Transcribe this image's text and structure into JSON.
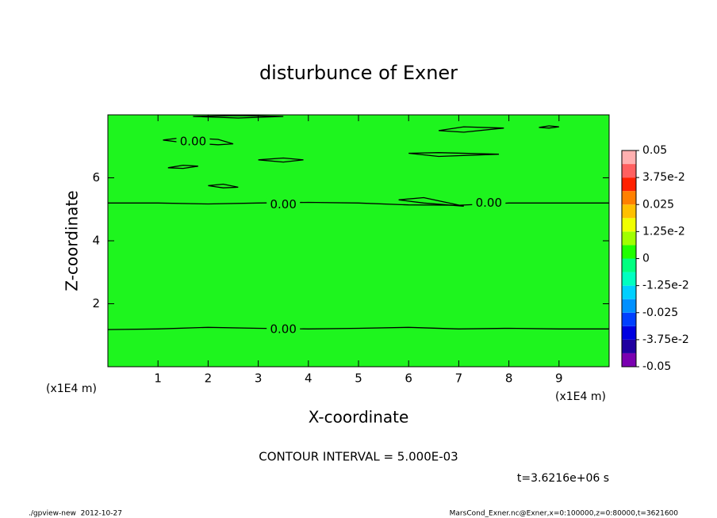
{
  "chart_data": {
    "type": "contour",
    "title": "disturbunce of Exner",
    "xlabel": "X-coordinate",
    "ylabel": "Z-coordinate",
    "x_unit": "(x1E4 m)",
    "xlim": [
      0,
      10
    ],
    "ylim": [
      0,
      8
    ],
    "xticks": [
      1,
      2,
      3,
      4,
      5,
      6,
      7,
      8,
      9
    ],
    "yticks": [
      2,
      4,
      6
    ],
    "fill_color": "#1ef51e",
    "line_color": "#000000",
    "contours": [
      {
        "x": [
          0,
          1,
          2,
          3,
          4,
          5,
          6,
          7,
          8,
          9,
          10
        ],
        "y": [
          1.18,
          1.2,
          1.25,
          1.22,
          1.2,
          1.22,
          1.25,
          1.2,
          1.22,
          1.2,
          1.2
        ]
      },
      {
        "x": [
          0,
          1,
          2,
          3,
          4,
          5,
          6,
          7,
          8,
          9,
          10
        ],
        "y": [
          5.2,
          5.2,
          5.17,
          5.2,
          5.22,
          5.2,
          5.14,
          5.13,
          5.2,
          5.2,
          5.2
        ]
      },
      {
        "x": [
          1.1,
          1.5,
          2.2,
          2.5,
          2.2,
          1.5,
          1.1
        ],
        "y": [
          7.2,
          7.28,
          7.22,
          7.08,
          7.05,
          7.12,
          7.2
        ]
      },
      {
        "x": [
          1.2,
          1.5,
          1.8,
          1.5,
          1.2
        ],
        "y": [
          6.32,
          6.4,
          6.37,
          6.3,
          6.32
        ]
      },
      {
        "x": [
          2.0,
          2.3,
          2.6,
          2.3,
          2.0
        ],
        "y": [
          5.75,
          5.8,
          5.7,
          5.68,
          5.75
        ]
      },
      {
        "x": [
          3.0,
          3.5,
          3.9,
          3.5,
          3.0
        ],
        "y": [
          6.57,
          6.63,
          6.57,
          6.5,
          6.57
        ]
      },
      {
        "x": [
          6.0,
          6.6,
          7.8,
          6.6,
          6.0
        ],
        "y": [
          6.78,
          6.8,
          6.75,
          6.68,
          6.78
        ]
      },
      {
        "x": [
          5.8,
          6.3,
          7.1,
          6.3,
          5.8
        ],
        "y": [
          5.3,
          5.37,
          5.1,
          5.2,
          5.3
        ]
      },
      {
        "x": [
          6.6,
          7.1,
          7.9,
          7.1,
          6.6
        ],
        "y": [
          7.5,
          7.62,
          7.58,
          7.45,
          7.5
        ]
      },
      {
        "x": [
          8.6,
          8.8,
          9.0,
          8.8,
          8.6
        ],
        "y": [
          7.6,
          7.65,
          7.62,
          7.58,
          7.6
        ]
      },
      {
        "x": [
          1.7,
          2.6,
          3.5,
          2.6,
          1.7
        ],
        "y": [
          7.95,
          7.98,
          7.95,
          7.9,
          7.95
        ]
      }
    ],
    "contour_labels": [
      {
        "text": "0.00",
        "x": 1.7,
        "y": 7.14
      },
      {
        "text": "0.00",
        "x": 3.5,
        "y": 5.15
      },
      {
        "text": "0.00",
        "x": 7.6,
        "y": 5.2
      },
      {
        "text": "0.00",
        "x": 3.5,
        "y": 1.18
      }
    ],
    "colorbar_levels": [
      -0.05,
      -0.04375,
      -0.0375,
      -0.03125,
      -0.025,
      -0.01875,
      -0.0125,
      -0.00625,
      0,
      0.00625,
      0.0125,
      0.01875,
      0.025,
      0.03125,
      0.0375,
      0.04375,
      0.05
    ],
    "colorbar_colors": [
      "#7a00b0",
      "#2000a0",
      "#0000e0",
      "#0040ff",
      "#0090ff",
      "#00d0ff",
      "#00ffc0",
      "#00ff80",
      "#20ff00",
      "#a0ff00",
      "#f0ff00",
      "#ffc000",
      "#ff8000",
      "#ff2000",
      "#ff6060",
      "#ffb0b0"
    ],
    "colorbar_ticks": [
      -0.05,
      {
        "value": -0.0375,
        "label": "-3.75e-2"
      },
      -0.025,
      {
        "value": -0.0125,
        "label": "-1.25e-2"
      },
      0,
      {
        "value": 0.0125,
        "label": "1.25e-2"
      },
      0.025,
      {
        "value": 0.0375,
        "label": "3.75e-2"
      },
      0.05
    ],
    "contour_interval": "CONTOUR INTERVAL = 5.000E-03",
    "time_label": "t=3.6216e+06 s",
    "footer_left": "./gpview-new  2012-10-27",
    "footer_right": "MarsCond_Exner.nc@Exner,x=0:100000,z=0:80000,t=3621600"
  }
}
